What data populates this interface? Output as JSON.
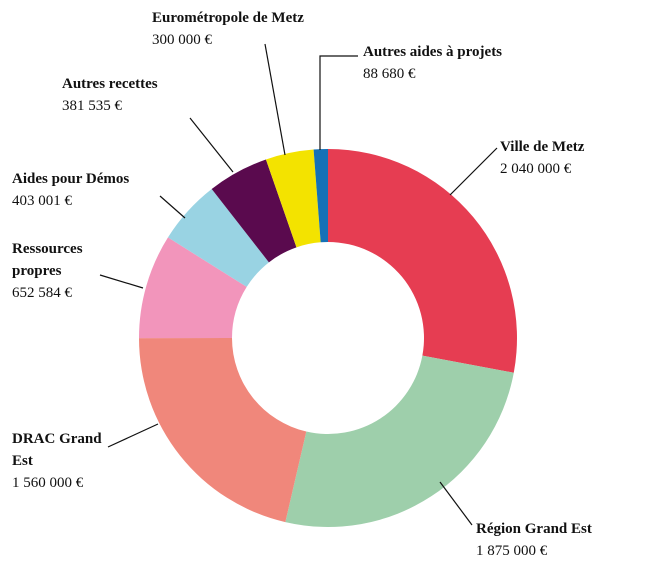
{
  "chart_data": {
    "type": "donut",
    "categories": [
      "Ville de Metz",
      "Région Grand Est",
      "DRAC Grand Est",
      "Ressources propres",
      "Aides pour Démos",
      "Autres recettes",
      "Eurométropole de Metz",
      "Autres aides à projets"
    ],
    "values": [
      2040000,
      1875000,
      1560000,
      652584,
      403001,
      381535,
      300000,
      88680
    ],
    "value_labels": [
      "2 040 000 €",
      "1 875 000 €",
      "1 560 000 €",
      "652 584 €",
      "403 001 €",
      "381 535 €",
      "300 000 €",
      "88 680 €"
    ],
    "colors": [
      "#e63d52",
      "#9ecfab",
      "#f0877b",
      "#f295bb",
      "#99d3e3",
      "#5a0a4e",
      "#f3e300",
      "#1471b7"
    ]
  }
}
